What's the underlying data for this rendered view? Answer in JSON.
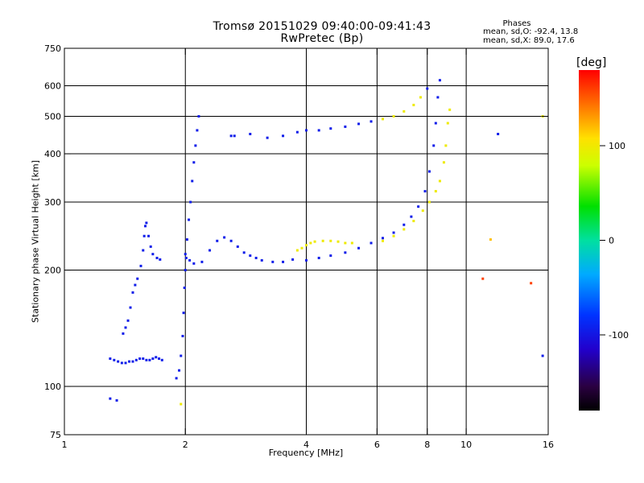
{
  "header": {
    "title_line1": "Tromsø 20151029 09:40:00-09:41:43",
    "title_line2": "RwPretec (Bp)",
    "phases_heading": "Phases",
    "phases_o": "mean, sd,O: -92.4, 13.8",
    "phases_x": "mean, sd,X:  89.0, 17.6"
  },
  "colorbar": {
    "unit": "[deg]",
    "ticks": [
      {
        "label": "100",
        "value": 100
      },
      {
        "label": "0",
        "value": 0
      },
      {
        "label": "-100",
        "value": -100
      }
    ],
    "range": [
      -180,
      180
    ],
    "colormap": "rainbow-black-to-red"
  },
  "chart_data": {
    "type": "scatter",
    "xlabel": "Frequency [MHz]",
    "ylabel": "Stationary phase Virtual Height [km]",
    "xscale": "log",
    "yscale": "log",
    "xlim": [
      1,
      16
    ],
    "ylim": [
      75,
      750
    ],
    "xticks": [
      {
        "value": 1,
        "label": "1"
      },
      {
        "value": 2,
        "label": "2"
      },
      {
        "value": 4,
        "label": "4"
      },
      {
        "value": 6,
        "label": "6"
      },
      {
        "value": 8,
        "label": "8"
      },
      {
        "value": 10,
        "label": "10"
      },
      {
        "value": 16,
        "label": "16"
      }
    ],
    "yticks": [
      {
        "value": 75,
        "label": "75"
      },
      {
        "value": 100,
        "label": "100"
      },
      {
        "value": 200,
        "label": "200"
      },
      {
        "value": 300,
        "label": "300"
      },
      {
        "value": 400,
        "label": "400"
      },
      {
        "value": 500,
        "label": "500"
      },
      {
        "value": 600,
        "label": "600"
      },
      {
        "value": 750,
        "label": "750"
      }
    ],
    "grid_x": [
      2,
      4,
      6,
      8,
      10
    ],
    "grid_y": [
      100,
      200,
      300,
      400,
      500,
      600
    ],
    "color_variable": "phase [deg]",
    "points": [
      [
        1.3,
        118,
        -95
      ],
      [
        1.33,
        117,
        -95
      ],
      [
        1.36,
        116,
        -95
      ],
      [
        1.39,
        115,
        -95
      ],
      [
        1.42,
        115,
        -95
      ],
      [
        1.45,
        116,
        -95
      ],
      [
        1.48,
        116,
        -95
      ],
      [
        1.51,
        117,
        -95
      ],
      [
        1.54,
        118,
        -95
      ],
      [
        1.57,
        118,
        -95
      ],
      [
        1.6,
        117,
        -95
      ],
      [
        1.63,
        117,
        -95
      ],
      [
        1.66,
        118,
        -95
      ],
      [
        1.69,
        119,
        -95
      ],
      [
        1.72,
        118,
        -95
      ],
      [
        1.75,
        117,
        -95
      ],
      [
        1.4,
        137,
        -95
      ],
      [
        1.42,
        142,
        -95
      ],
      [
        1.44,
        148,
        -95
      ],
      [
        1.46,
        160,
        -95
      ],
      [
        1.48,
        175,
        -95
      ],
      [
        1.5,
        183,
        -95
      ],
      [
        1.52,
        190,
        -95
      ],
      [
        1.55,
        205,
        -95
      ],
      [
        1.57,
        225,
        -95
      ],
      [
        1.58,
        245,
        -95
      ],
      [
        1.59,
        260,
        -95
      ],
      [
        1.6,
        265,
        -95
      ],
      [
        1.62,
        245,
        -95
      ],
      [
        1.64,
        230,
        -95
      ],
      [
        1.66,
        220,
        -95
      ],
      [
        1.7,
        215,
        -95
      ],
      [
        1.73,
        213,
        -95
      ],
      [
        1.9,
        105,
        -95
      ],
      [
        1.93,
        110,
        -95
      ],
      [
        1.95,
        120,
        -95
      ],
      [
        1.97,
        135,
        -95
      ],
      [
        1.98,
        155,
        -95
      ],
      [
        1.99,
        180,
        -95
      ],
      [
        2.0,
        200,
        -95
      ],
      [
        2.01,
        215,
        -95
      ],
      [
        2.02,
        240,
        -95
      ],
      [
        2.04,
        270,
        -95
      ],
      [
        2.06,
        300,
        -95
      ],
      [
        2.08,
        340,
        -95
      ],
      [
        2.1,
        380,
        -95
      ],
      [
        2.12,
        420,
        -95
      ],
      [
        2.14,
        460,
        -95
      ],
      [
        2.16,
        500,
        -95
      ],
      [
        2.0,
        220,
        -95
      ],
      [
        2.05,
        212,
        -95
      ],
      [
        2.1,
        208,
        -95
      ],
      [
        2.2,
        210,
        -95
      ],
      [
        2.3,
        225,
        -95
      ],
      [
        2.4,
        238,
        -95
      ],
      [
        2.5,
        243,
        -95
      ],
      [
        2.6,
        238,
        -95
      ],
      [
        2.7,
        230,
        -95
      ],
      [
        2.8,
        222,
        -95
      ],
      [
        2.9,
        218,
        -95
      ],
      [
        3.0,
        215,
        -95
      ],
      [
        3.1,
        212,
        -95
      ],
      [
        3.3,
        210,
        -95
      ],
      [
        3.5,
        210,
        -95
      ],
      [
        3.7,
        213,
        -95
      ],
      [
        3.8,
        225,
        100
      ],
      [
        3.9,
        228,
        100
      ],
      [
        4.0,
        232,
        100
      ],
      [
        4.1,
        235,
        100
      ],
      [
        4.2,
        237,
        100
      ],
      [
        4.4,
        238,
        100
      ],
      [
        4.6,
        238,
        100
      ],
      [
        4.8,
        237,
        100
      ],
      [
        5.0,
        235,
        100
      ],
      [
        5.2,
        235,
        100
      ],
      [
        4.0,
        212,
        -95
      ],
      [
        4.3,
        215,
        -95
      ],
      [
        4.6,
        218,
        -95
      ],
      [
        5.0,
        222,
        -95
      ],
      [
        5.4,
        228,
        -95
      ],
      [
        5.8,
        235,
        -95
      ],
      [
        6.2,
        242,
        -95
      ],
      [
        6.6,
        250,
        -95
      ],
      [
        7.0,
        262,
        -95
      ],
      [
        7.3,
        275,
        -95
      ],
      [
        7.6,
        292,
        -95
      ],
      [
        7.9,
        320,
        -95
      ],
      [
        8.1,
        360,
        -95
      ],
      [
        8.3,
        420,
        -95
      ],
      [
        8.4,
        480,
        -95
      ],
      [
        8.5,
        560,
        -95
      ],
      [
        8.6,
        620,
        -95
      ],
      [
        6.2,
        238,
        100
      ],
      [
        6.6,
        245,
        100
      ],
      [
        7.0,
        255,
        100
      ],
      [
        7.4,
        268,
        100
      ],
      [
        7.8,
        285,
        100
      ],
      [
        8.1,
        300,
        100
      ],
      [
        8.4,
        320,
        100
      ],
      [
        8.6,
        340,
        100
      ],
      [
        8.8,
        380,
        100
      ],
      [
        8.9,
        420,
        100
      ],
      [
        9.0,
        480,
        100
      ],
      [
        9.1,
        520,
        100
      ],
      [
        2.9,
        450,
        -95
      ],
      [
        3.2,
        440,
        -95
      ],
      [
        3.5,
        445,
        -95
      ],
      [
        3.8,
        455,
        -95
      ],
      [
        4.0,
        460,
        -95
      ],
      [
        4.3,
        460,
        -95
      ],
      [
        4.6,
        465,
        -95
      ],
      [
        5.0,
        470,
        -95
      ],
      [
        5.4,
        478,
        -95
      ],
      [
        5.8,
        485,
        -95
      ],
      [
        6.2,
        492,
        100
      ],
      [
        6.6,
        500,
        100
      ],
      [
        7.0,
        515,
        100
      ],
      [
        7.4,
        535,
        100
      ],
      [
        7.7,
        560,
        100
      ],
      [
        8.0,
        590,
        -95
      ],
      [
        1.95,
        90,
        100
      ],
      [
        1.3,
        93,
        -95
      ],
      [
        1.35,
        92,
        -95
      ],
      [
        11.0,
        190,
        160
      ],
      [
        14.5,
        185,
        160
      ],
      [
        15.5,
        500,
        100
      ],
      [
        15.5,
        120,
        -95
      ],
      [
        11.5,
        240,
        120
      ],
      [
        12.0,
        450,
        -95
      ],
      [
        2.6,
        445,
        -95
      ],
      [
        2.65,
        445,
        -95
      ]
    ]
  }
}
